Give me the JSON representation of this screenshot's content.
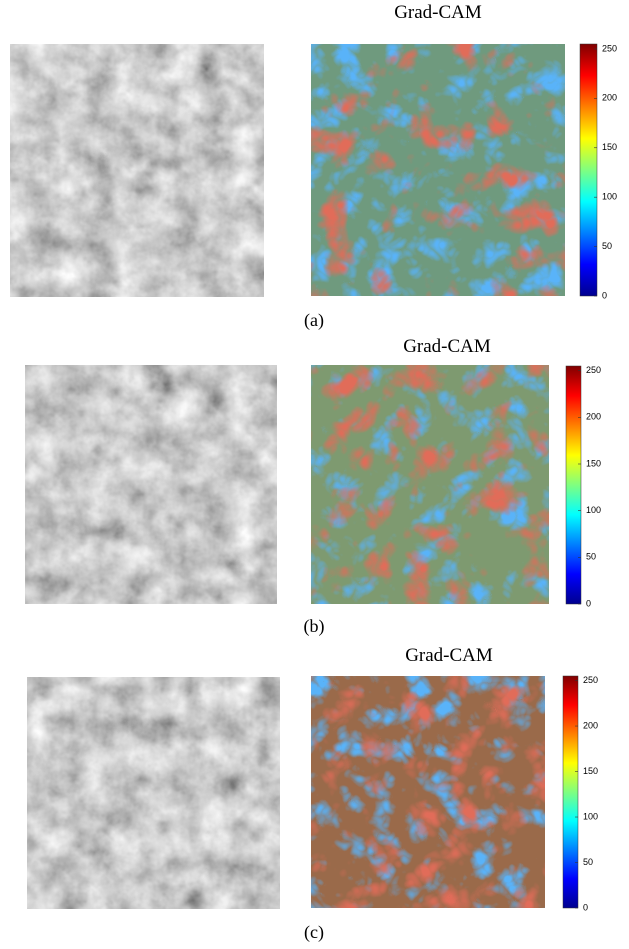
{
  "panels": [
    {
      "title": "Grad-CAM",
      "caption": "(a)",
      "colorbar": {
        "lim": [
          0,
          255
        ],
        "ticks": [
          0,
          50,
          100,
          150,
          200,
          250
        ]
      }
    },
    {
      "title": "Grad-CAM",
      "caption": "(b)",
      "colorbar": {
        "lim": [
          0,
          255
        ],
        "ticks": [
          0,
          50,
          100,
          150,
          200,
          250
        ]
      }
    },
    {
      "title": "Grad-CAM",
      "caption": "(c)",
      "colorbar": {
        "lim": [
          0,
          255
        ],
        "ticks": [
          0,
          50,
          100,
          150,
          200,
          250
        ]
      }
    }
  ]
}
